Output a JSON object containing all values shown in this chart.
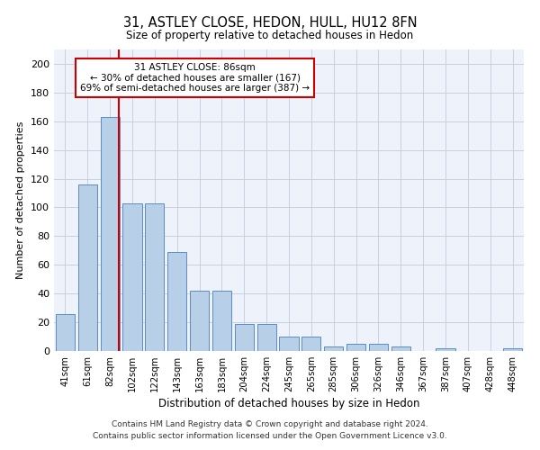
{
  "title1": "31, ASTLEY CLOSE, HEDON, HULL, HU12 8FN",
  "title2": "Size of property relative to detached houses in Hedon",
  "xlabel": "Distribution of detached houses by size in Hedon",
  "ylabel": "Number of detached properties",
  "categories": [
    "41sqm",
    "61sqm",
    "82sqm",
    "102sqm",
    "122sqm",
    "143sqm",
    "163sqm",
    "183sqm",
    "204sqm",
    "224sqm",
    "245sqm",
    "265sqm",
    "285sqm",
    "306sqm",
    "326sqm",
    "346sqm",
    "367sqm",
    "387sqm",
    "407sqm",
    "428sqm",
    "448sqm"
  ],
  "values": [
    26,
    116,
    163,
    103,
    103,
    69,
    42,
    42,
    19,
    19,
    10,
    10,
    3,
    5,
    5,
    3,
    0,
    2,
    0,
    0,
    2
  ],
  "bar_color": "#b8cfe8",
  "bar_edge_color": "#5b8cc8",
  "ylim": [
    0,
    210
  ],
  "yticks": [
    0,
    20,
    40,
    60,
    80,
    100,
    120,
    140,
    160,
    180,
    200
  ],
  "annotation_title": "31 ASTLEY CLOSE: 86sqm",
  "annotation_line1": "← 30% of detached houses are smaller (167)",
  "annotation_line2": "69% of semi-detached houses are larger (387) →",
  "annotation_color": "#cc0000",
  "red_line_x": 2.4,
  "footer1": "Contains HM Land Registry data © Crown copyright and database right 2024.",
  "footer2": "Contains public sector information licensed under the Open Government Licence v3.0.",
  "background_color": "#eef2fb",
  "grid_color": "#c8cfe0"
}
